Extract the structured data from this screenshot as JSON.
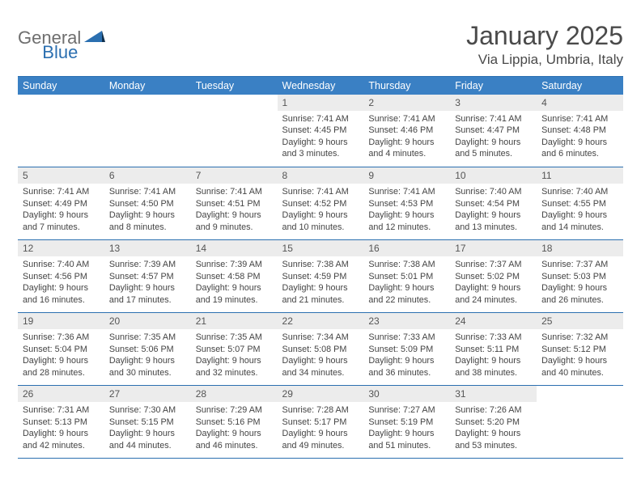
{
  "brand": {
    "part1": "General",
    "part2": "Blue"
  },
  "title": "January 2025",
  "location": "Via Lippia, Umbria, Italy",
  "colors": {
    "header_bg": "#3a80c4",
    "border": "#2b6fb0",
    "daynum_bg": "#ececec",
    "text": "#444444",
    "brand_gray": "#6e6e6e",
    "brand_blue": "#2b6fb0"
  },
  "dayHeaders": [
    "Sunday",
    "Monday",
    "Tuesday",
    "Wednesday",
    "Thursday",
    "Friday",
    "Saturday"
  ],
  "weeks": [
    [
      null,
      null,
      null,
      {
        "n": "1",
        "sr": "7:41 AM",
        "ss": "4:45 PM",
        "dh": "9",
        "dm": "3"
      },
      {
        "n": "2",
        "sr": "7:41 AM",
        "ss": "4:46 PM",
        "dh": "9",
        "dm": "4"
      },
      {
        "n": "3",
        "sr": "7:41 AM",
        "ss": "4:47 PM",
        "dh": "9",
        "dm": "5"
      },
      {
        "n": "4",
        "sr": "7:41 AM",
        "ss": "4:48 PM",
        "dh": "9",
        "dm": "6"
      }
    ],
    [
      {
        "n": "5",
        "sr": "7:41 AM",
        "ss": "4:49 PM",
        "dh": "9",
        "dm": "7"
      },
      {
        "n": "6",
        "sr": "7:41 AM",
        "ss": "4:50 PM",
        "dh": "9",
        "dm": "8"
      },
      {
        "n": "7",
        "sr": "7:41 AM",
        "ss": "4:51 PM",
        "dh": "9",
        "dm": "9"
      },
      {
        "n": "8",
        "sr": "7:41 AM",
        "ss": "4:52 PM",
        "dh": "9",
        "dm": "10"
      },
      {
        "n": "9",
        "sr": "7:41 AM",
        "ss": "4:53 PM",
        "dh": "9",
        "dm": "12"
      },
      {
        "n": "10",
        "sr": "7:40 AM",
        "ss": "4:54 PM",
        "dh": "9",
        "dm": "13"
      },
      {
        "n": "11",
        "sr": "7:40 AM",
        "ss": "4:55 PM",
        "dh": "9",
        "dm": "14"
      }
    ],
    [
      {
        "n": "12",
        "sr": "7:40 AM",
        "ss": "4:56 PM",
        "dh": "9",
        "dm": "16"
      },
      {
        "n": "13",
        "sr": "7:39 AM",
        "ss": "4:57 PM",
        "dh": "9",
        "dm": "17"
      },
      {
        "n": "14",
        "sr": "7:39 AM",
        "ss": "4:58 PM",
        "dh": "9",
        "dm": "19"
      },
      {
        "n": "15",
        "sr": "7:38 AM",
        "ss": "4:59 PM",
        "dh": "9",
        "dm": "21"
      },
      {
        "n": "16",
        "sr": "7:38 AM",
        "ss": "5:01 PM",
        "dh": "9",
        "dm": "22"
      },
      {
        "n": "17",
        "sr": "7:37 AM",
        "ss": "5:02 PM",
        "dh": "9",
        "dm": "24"
      },
      {
        "n": "18",
        "sr": "7:37 AM",
        "ss": "5:03 PM",
        "dh": "9",
        "dm": "26"
      }
    ],
    [
      {
        "n": "19",
        "sr": "7:36 AM",
        "ss": "5:04 PM",
        "dh": "9",
        "dm": "28"
      },
      {
        "n": "20",
        "sr": "7:35 AM",
        "ss": "5:06 PM",
        "dh": "9",
        "dm": "30"
      },
      {
        "n": "21",
        "sr": "7:35 AM",
        "ss": "5:07 PM",
        "dh": "9",
        "dm": "32"
      },
      {
        "n": "22",
        "sr": "7:34 AM",
        "ss": "5:08 PM",
        "dh": "9",
        "dm": "34"
      },
      {
        "n": "23",
        "sr": "7:33 AM",
        "ss": "5:09 PM",
        "dh": "9",
        "dm": "36"
      },
      {
        "n": "24",
        "sr": "7:33 AM",
        "ss": "5:11 PM",
        "dh": "9",
        "dm": "38"
      },
      {
        "n": "25",
        "sr": "7:32 AM",
        "ss": "5:12 PM",
        "dh": "9",
        "dm": "40"
      }
    ],
    [
      {
        "n": "26",
        "sr": "7:31 AM",
        "ss": "5:13 PM",
        "dh": "9",
        "dm": "42"
      },
      {
        "n": "27",
        "sr": "7:30 AM",
        "ss": "5:15 PM",
        "dh": "9",
        "dm": "44"
      },
      {
        "n": "28",
        "sr": "7:29 AM",
        "ss": "5:16 PM",
        "dh": "9",
        "dm": "46"
      },
      {
        "n": "29",
        "sr": "7:28 AM",
        "ss": "5:17 PM",
        "dh": "9",
        "dm": "49"
      },
      {
        "n": "30",
        "sr": "7:27 AM",
        "ss": "5:19 PM",
        "dh": "9",
        "dm": "51"
      },
      {
        "n": "31",
        "sr": "7:26 AM",
        "ss": "5:20 PM",
        "dh": "9",
        "dm": "53"
      },
      null
    ]
  ],
  "labels": {
    "sunrise": "Sunrise:",
    "sunset": "Sunset:",
    "daylight": "Daylight:",
    "hours": "hours",
    "and": "and",
    "minutes": "minutes."
  }
}
